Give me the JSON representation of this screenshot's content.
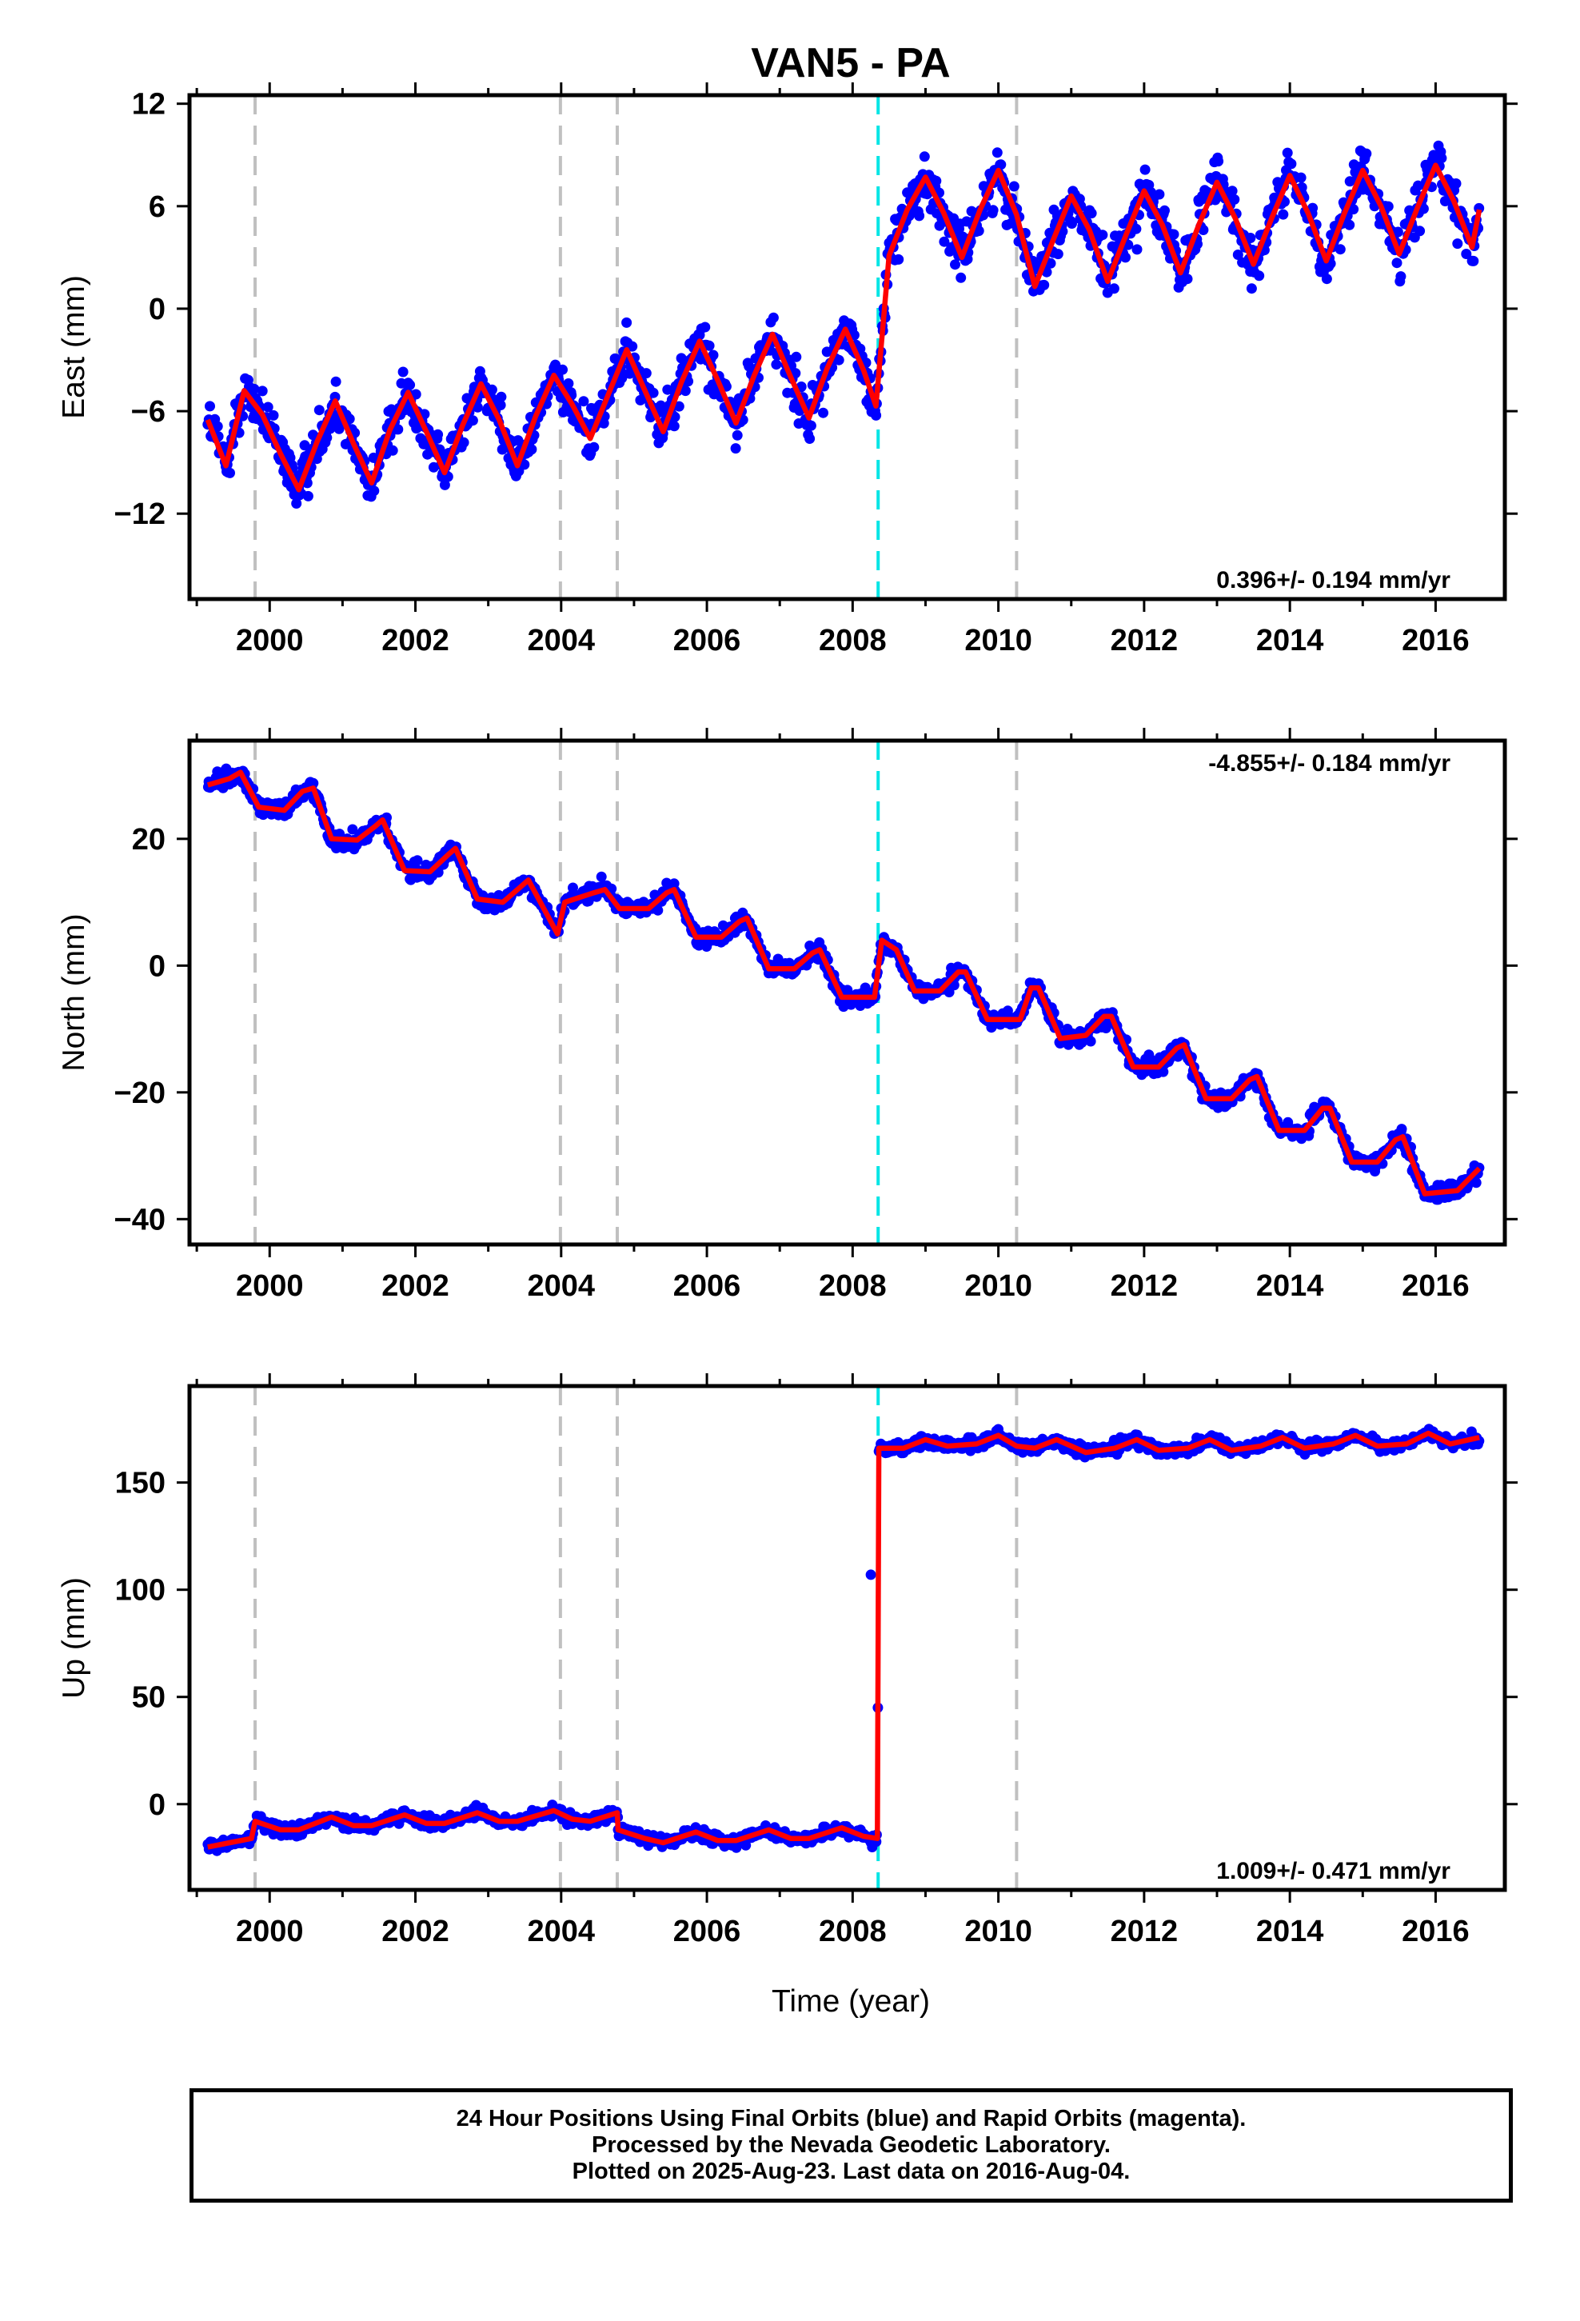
{
  "title": "VAN5 - PA",
  "xlabel": "Time (year)",
  "footer": {
    "line1": "24 Hour Positions Using Final Orbits (blue) and Rapid Orbits (magenta).",
    "line2": "Processed by the Nevada Geodetic Laboratory.",
    "line3": "Plotted on 2025-Aug-23. Last data on 2016-Aug-04."
  },
  "colors": {
    "points": "#0000ff",
    "model": "#ff0000",
    "equipment_change": "#c0c0c0",
    "earthquake": "#00e5e5"
  },
  "chart_data": [
    {
      "type": "scatter",
      "ylabel": "East (mm)",
      "rate_label": "0.396+/- 0.194 mm/yr",
      "xlim": [
        1998.9,
        2016.95
      ],
      "ylim": [
        -17,
        12.5
      ],
      "x_ticks": [
        2000,
        2002,
        2004,
        2006,
        2008,
        2010,
        2012,
        2014,
        2016
      ],
      "x_tick_labels": [
        "2000",
        "2002",
        "2004",
        "2006",
        "2008",
        "2010",
        "2012",
        "2014",
        "2016"
      ],
      "y_ticks": [
        12,
        6,
        0,
        -6,
        -12
      ],
      "y_tick_labels": [
        "12",
        "6",
        "0",
        "−6",
        "−12"
      ],
      "gray_lines": [
        1999.8,
        2003.99,
        2004.77,
        2010.25
      ],
      "cyan_lines": [
        2008.35
      ],
      "series": [
        {
          "values": [
            [
              1999.15,
              -6.5
            ],
            [
              1999.4,
              -9.2
            ],
            [
              1999.65,
              -4.8
            ],
            [
              1999.9,
              -6.2
            ],
            [
              2000.15,
              -8.5
            ],
            [
              2000.4,
              -10.6
            ],
            [
              2000.65,
              -7.8
            ],
            [
              2000.9,
              -5.4
            ],
            [
              2001.15,
              -7.9
            ],
            [
              2001.4,
              -10.2
            ],
            [
              2001.65,
              -7.1
            ],
            [
              2001.9,
              -4.9
            ],
            [
              2002.15,
              -7.2
            ],
            [
              2002.4,
              -9.6
            ],
            [
              2002.65,
              -6.8
            ],
            [
              2002.9,
              -4.4
            ],
            [
              2003.15,
              -6.5
            ],
            [
              2003.4,
              -9.2
            ],
            [
              2003.65,
              -6.3
            ],
            [
              2003.9,
              -3.9
            ],
            [
              2004.15,
              -5.6
            ],
            [
              2004.4,
              -7.6
            ],
            [
              2004.65,
              -5.0
            ],
            [
              2004.9,
              -2.4
            ],
            [
              2005.15,
              -4.8
            ],
            [
              2005.4,
              -7.2
            ],
            [
              2005.65,
              -4.3
            ],
            [
              2005.9,
              -1.9
            ],
            [
              2006.15,
              -4.2
            ],
            [
              2006.4,
              -6.7
            ],
            [
              2006.65,
              -3.9
            ],
            [
              2006.9,
              -1.5
            ],
            [
              2007.15,
              -4.0
            ],
            [
              2007.4,
              -6.4
            ],
            [
              2007.65,
              -3.5
            ],
            [
              2007.9,
              -1.2
            ],
            [
              2008.15,
              -3.6
            ],
            [
              2008.32,
              -5.7
            ],
            [
              2008.5,
              3.1
            ],
            [
              2008.75,
              5.8
            ],
            [
              2009.0,
              7.7
            ],
            [
              2009.25,
              5.6
            ],
            [
              2009.5,
              3.0
            ],
            [
              2009.75,
              5.8
            ],
            [
              2010.0,
              8.1
            ],
            [
              2010.25,
              5.5
            ],
            [
              2010.5,
              1.3
            ],
            [
              2010.75,
              4.0
            ],
            [
              2011.0,
              6.6
            ],
            [
              2011.25,
              4.6
            ],
            [
              2011.5,
              1.6
            ],
            [
              2011.75,
              4.3
            ],
            [
              2012.0,
              6.9
            ],
            [
              2012.25,
              4.9
            ],
            [
              2012.5,
              2.1
            ],
            [
              2012.75,
              4.9
            ],
            [
              2013.0,
              7.4
            ],
            [
              2013.25,
              5.3
            ],
            [
              2013.5,
              2.6
            ],
            [
              2013.75,
              5.3
            ],
            [
              2014.0,
              7.8
            ],
            [
              2014.25,
              5.6
            ],
            [
              2014.5,
              2.8
            ],
            [
              2014.75,
              5.6
            ],
            [
              2015.0,
              8.1
            ],
            [
              2015.25,
              6.0
            ],
            [
              2015.5,
              3.2
            ],
            [
              2015.75,
              5.9
            ],
            [
              2016.0,
              8.4
            ],
            [
              2016.25,
              6.3
            ],
            [
              2016.5,
              3.6
            ],
            [
              2016.6,
              5.8
            ]
          ]
        }
      ]
    },
    {
      "type": "scatter",
      "ylabel": "North (mm)",
      "rate_label": "-4.855+/- 0.184 mm/yr",
      "xlim": [
        1998.9,
        2016.95
      ],
      "ylim": [
        -44,
        35.5
      ],
      "x_ticks": [
        2000,
        2002,
        2004,
        2006,
        2008,
        2010,
        2012,
        2014,
        2016
      ],
      "x_tick_labels": [
        "2000",
        "2002",
        "2004",
        "2006",
        "2008",
        "2010",
        "2012",
        "2014",
        "2016"
      ],
      "y_ticks": [
        20,
        0,
        -20,
        -40
      ],
      "y_tick_labels": [
        "20",
        "0",
        "−20",
        "−40"
      ],
      "gray_lines": [
        1999.8,
        2003.99,
        2004.77,
        2010.25
      ],
      "cyan_lines": [
        2008.35
      ],
      "series": [
        {
          "values": [
            [
              1999.15,
              28.5
            ],
            [
              1999.45,
              29.5
            ],
            [
              1999.6,
              30.5
            ],
            [
              1999.85,
              25.0
            ],
            [
              2000.2,
              24.5
            ],
            [
              2000.45,
              27.5
            ],
            [
              2000.6,
              28.0
            ],
            [
              2000.85,
              20.0
            ],
            [
              2001.2,
              19.8
            ],
            [
              2001.45,
              22.0
            ],
            [
              2001.55,
              23.0
            ],
            [
              2001.85,
              15.0
            ],
            [
              2002.2,
              14.8
            ],
            [
              2002.45,
              17.5
            ],
            [
              2002.55,
              18.5
            ],
            [
              2002.85,
              10.5
            ],
            [
              2003.2,
              10.0
            ],
            [
              2003.45,
              12.5
            ],
            [
              2003.55,
              13.5
            ],
            [
              2003.95,
              5.0
            ],
            [
              2004.05,
              10.0
            ],
            [
              2004.45,
              11.5
            ],
            [
              2004.6,
              12.0
            ],
            [
              2004.8,
              9.0
            ],
            [
              2005.2,
              9.0
            ],
            [
              2005.45,
              11.5
            ],
            [
              2005.55,
              12.0
            ],
            [
              2005.85,
              4.5
            ],
            [
              2006.2,
              4.5
            ],
            [
              2006.45,
              7.0
            ],
            [
              2006.55,
              7.5
            ],
            [
              2006.85,
              -0.5
            ],
            [
              2007.2,
              -0.5
            ],
            [
              2007.45,
              2.0
            ],
            [
              2007.55,
              2.5
            ],
            [
              2007.85,
              -5.0
            ],
            [
              2008.3,
              -5.0
            ],
            [
              2008.4,
              4.0
            ],
            [
              2008.6,
              2.5
            ],
            [
              2008.85,
              -4.0
            ],
            [
              2009.2,
              -4.0
            ],
            [
              2009.45,
              -1.0
            ],
            [
              2009.55,
              -1.0
            ],
            [
              2009.85,
              -8.5
            ],
            [
              2010.3,
              -8.5
            ],
            [
              2010.45,
              -3.5
            ],
            [
              2010.55,
              -3.5
            ],
            [
              2010.85,
              -11.5
            ],
            [
              2011.2,
              -11.0
            ],
            [
              2011.45,
              -8.0
            ],
            [
              2011.55,
              -8.0
            ],
            [
              2011.85,
              -16.0
            ],
            [
              2012.2,
              -16.0
            ],
            [
              2012.45,
              -13.0
            ],
            [
              2012.55,
              -12.5
            ],
            [
              2012.85,
              -21.0
            ],
            [
              2013.2,
              -21.0
            ],
            [
              2013.45,
              -18.0
            ],
            [
              2013.55,
              -17.5
            ],
            [
              2013.85,
              -26.0
            ],
            [
              2014.2,
              -26.0
            ],
            [
              2014.45,
              -22.5
            ],
            [
              2014.55,
              -22.5
            ],
            [
              2014.85,
              -31.0
            ],
            [
              2015.2,
              -31.0
            ],
            [
              2015.45,
              -27.5
            ],
            [
              2015.55,
              -27.0
            ],
            [
              2015.85,
              -36.0
            ],
            [
              2016.3,
              -35.5
            ],
            [
              2016.6,
              -32.0
            ]
          ]
        }
      ]
    },
    {
      "type": "scatter",
      "ylabel": "Up (mm)",
      "rate_label": "1.009+/- 0.471 mm/yr",
      "xlim": [
        1998.9,
        2016.95
      ],
      "ylim": [
        -40,
        195
      ],
      "x_ticks": [
        2000,
        2002,
        2004,
        2006,
        2008,
        2010,
        2012,
        2014,
        2016
      ],
      "x_tick_labels": [
        "2000",
        "2002",
        "2004",
        "2006",
        "2008",
        "2010",
        "2012",
        "2014",
        "2016"
      ],
      "y_ticks": [
        150,
        100,
        50,
        0
      ],
      "y_tick_labels": [
        "150",
        "100",
        "50",
        "0"
      ],
      "gray_lines": [
        1999.8,
        2003.99,
        2004.77,
        2010.25
      ],
      "cyan_lines": [
        2008.35
      ],
      "series": [
        {
          "values": [
            [
              1999.15,
              -20
            ],
            [
              1999.45,
              -18
            ],
            [
              1999.75,
              -16
            ],
            [
              1999.8,
              -8
            ],
            [
              2000.15,
              -12
            ],
            [
              2000.4,
              -12
            ],
            [
              2000.85,
              -6
            ],
            [
              2001.15,
              -10
            ],
            [
              2001.4,
              -10
            ],
            [
              2001.85,
              -5
            ],
            [
              2002.15,
              -9
            ],
            [
              2002.4,
              -9
            ],
            [
              2002.85,
              -4
            ],
            [
              2003.15,
              -8
            ],
            [
              2003.4,
              -8
            ],
            [
              2003.9,
              -3
            ],
            [
              2004.15,
              -7
            ],
            [
              2004.4,
              -8
            ],
            [
              2004.77,
              -4
            ],
            [
              2004.78,
              -12
            ],
            [
              2005.15,
              -16
            ],
            [
              2005.4,
              -18
            ],
            [
              2005.85,
              -13
            ],
            [
              2006.15,
              -17
            ],
            [
              2006.4,
              -17
            ],
            [
              2006.85,
              -12
            ],
            [
              2007.15,
              -16
            ],
            [
              2007.4,
              -16
            ],
            [
              2007.85,
              -11
            ],
            [
              2008.15,
              -15
            ],
            [
              2008.34,
              -16
            ],
            [
              2008.36,
              166
            ],
            [
              2008.7,
              166
            ],
            [
              2009.0,
              170
            ],
            [
              2009.3,
              167
            ],
            [
              2009.7,
              168
            ],
            [
              2010.0,
              172
            ],
            [
              2010.25,
              167
            ],
            [
              2010.5,
              166
            ],
            [
              2010.8,
              170
            ],
            [
              2011.2,
              164
            ],
            [
              2011.6,
              166
            ],
            [
              2011.9,
              170
            ],
            [
              2012.2,
              165
            ],
            [
              2012.6,
              166
            ],
            [
              2012.9,
              170
            ],
            [
              2013.2,
              165
            ],
            [
              2013.6,
              167
            ],
            [
              2013.9,
              171
            ],
            [
              2014.2,
              166
            ],
            [
              2014.6,
              168
            ],
            [
              2014.9,
              172
            ],
            [
              2015.2,
              167
            ],
            [
              2015.6,
              168
            ],
            [
              2015.9,
              173
            ],
            [
              2016.2,
              168
            ],
            [
              2016.6,
              171
            ]
          ]
        }
      ],
      "outliers": [
        [
          2008.25,
          107
        ]
      ]
    }
  ]
}
